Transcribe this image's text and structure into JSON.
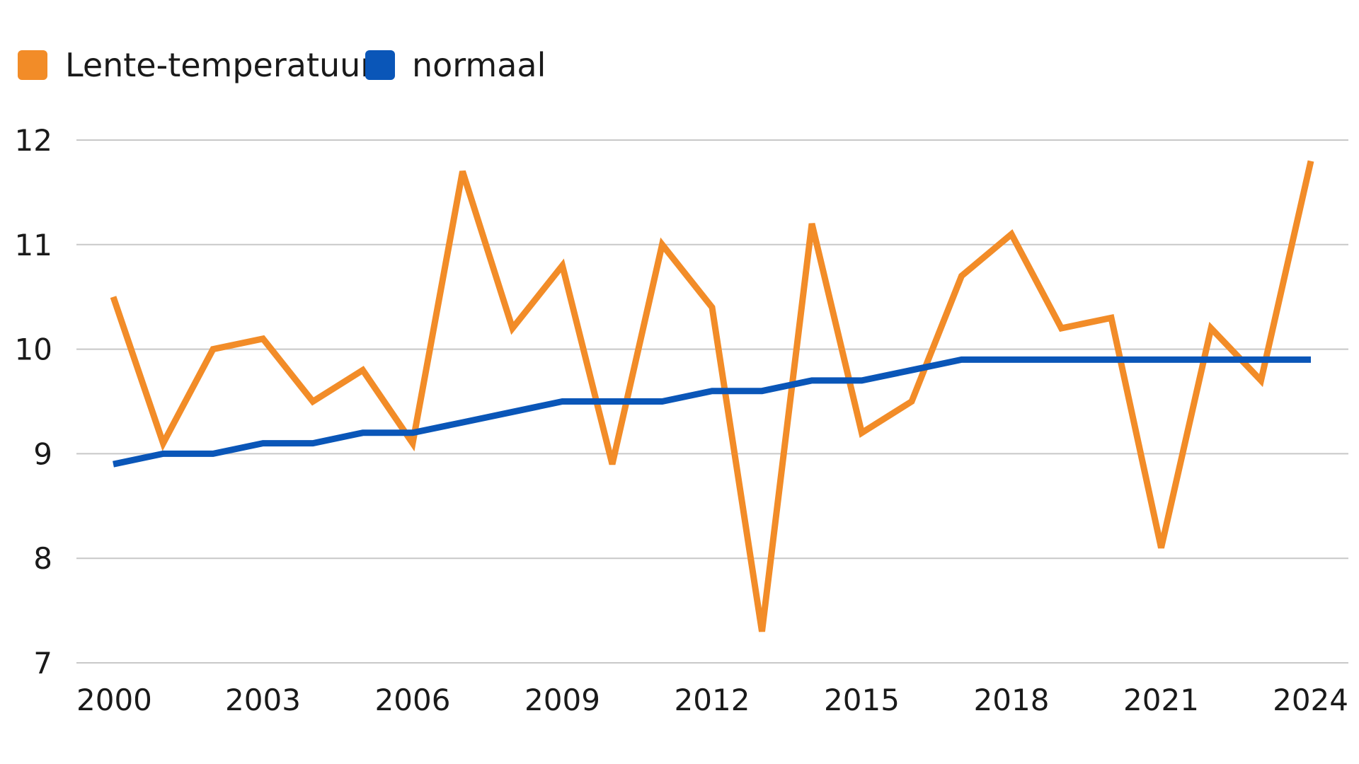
{
  "chart_data": {
    "type": "line",
    "title": "",
    "xlabel": "",
    "ylabel": "",
    "x": [
      2000,
      2001,
      2002,
      2003,
      2004,
      2005,
      2006,
      2007,
      2008,
      2009,
      2010,
      2011,
      2012,
      2013,
      2014,
      2015,
      2016,
      2017,
      2018,
      2019,
      2020,
      2021,
      2022,
      2023,
      2024
    ],
    "xlim": [
      2000,
      2024
    ],
    "ylim": [
      7,
      12
    ],
    "x_ticks": [
      "2000",
      "2003",
      "2006",
      "2009",
      "2012",
      "2015",
      "2018",
      "2021",
      "2024"
    ],
    "y_ticks": [
      "7",
      "8",
      "9",
      "10",
      "11",
      "12"
    ],
    "grid": true,
    "legend_position": "top-left",
    "series": [
      {
        "name": "Lente-temperatuur",
        "color": "#f28c28",
        "values": [
          10.5,
          9.1,
          10.0,
          10.1,
          9.5,
          9.8,
          9.1,
          11.7,
          10.2,
          10.8,
          8.9,
          11.0,
          10.4,
          7.3,
          11.2,
          9.2,
          9.5,
          10.7,
          11.1,
          10.2,
          10.3,
          8.1,
          10.2,
          9.7,
          11.8
        ]
      },
      {
        "name": "normaal",
        "color": "#0a56b8",
        "values": [
          8.9,
          9.0,
          9.0,
          9.1,
          9.1,
          9.2,
          9.2,
          9.3,
          9.4,
          9.5,
          9.5,
          9.5,
          9.6,
          9.6,
          9.7,
          9.7,
          9.8,
          9.9,
          9.9,
          9.9,
          9.9,
          9.9,
          9.9,
          9.9,
          9.9
        ]
      }
    ]
  }
}
